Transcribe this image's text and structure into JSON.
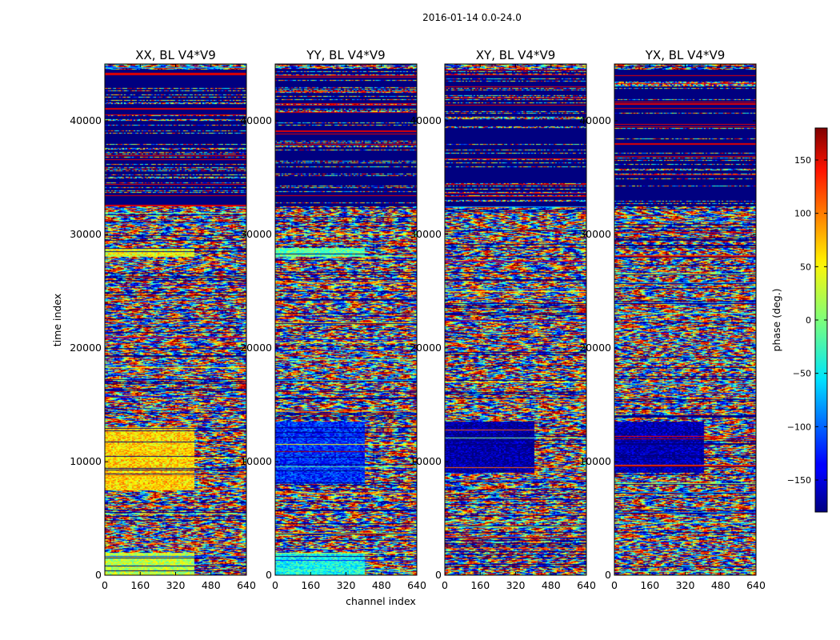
{
  "chart_data": {
    "type": "heatmap",
    "suptitle": "2016-01-14 0.0-24.0",
    "xlabel": "channel index",
    "ylabel": "time index",
    "xlim": [
      0,
      640
    ],
    "ylim": [
      0,
      45000
    ],
    "xticks": [
      0,
      160,
      320,
      480,
      640
    ],
    "yticks": [
      0,
      10000,
      20000,
      30000,
      40000
    ],
    "panels": [
      {
        "title": "XX, BL V4*V9",
        "bias": [
          [
            0,
            2000,
            20
          ],
          [
            7500,
            13000,
            60
          ],
          [
            28000,
            28800,
            40
          ]
        ]
      },
      {
        "title": "YY, BL V4*V9",
        "bias": [
          [
            0,
            2000,
            -40
          ],
          [
            8000,
            13500,
            -120
          ],
          [
            28000,
            28800,
            -10
          ]
        ]
      },
      {
        "title": "XY, BL V4*V9",
        "bias": [
          [
            9000,
            13500,
            -170
          ]
        ]
      },
      {
        "title": "YX, BL V4*V9",
        "bias": [
          [
            9000,
            13500,
            -165
          ]
        ]
      }
    ],
    "blank_band": {
      "from": 32500,
      "to": 44500,
      "phase": -180
    },
    "colorbar": {
      "label": "phase (deg.)",
      "range": [
        -180,
        180
      ],
      "ticks": [
        150,
        100,
        50,
        0,
        -50,
        -100,
        -150
      ],
      "tick_labels": [
        "150",
        "100",
        "50",
        "0",
        "−50",
        "−100",
        "−150"
      ]
    }
  }
}
